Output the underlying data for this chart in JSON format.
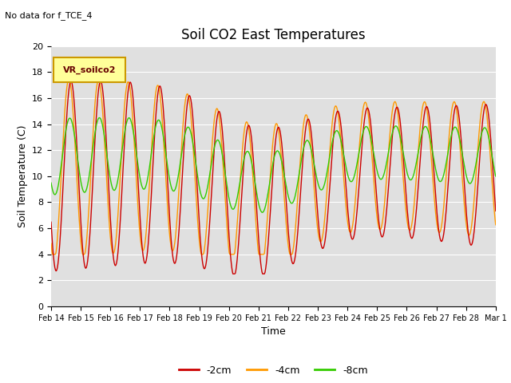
{
  "title": "Soil CO2 East Temperatures",
  "subtitle": "No data for f_TCE_4",
  "xlabel": "Time",
  "ylabel": "Soil Temperature (C)",
  "ylim": [
    0,
    20
  ],
  "legend_label": "VR_soilco2",
  "series_labels": [
    "-2cm",
    "-4cm",
    "-8cm"
  ],
  "series_colors": [
    "#cc0000",
    "#ff9900",
    "#33cc00"
  ],
  "background_color": "#e0e0e0",
  "x_tick_labels": [
    "Feb 14",
    "Feb 15",
    "Feb 16",
    "Feb 17",
    "Feb 18",
    "Feb 19",
    "Feb 20",
    "Feb 21",
    "Feb 22",
    "Feb 23",
    "Feb 24",
    "Feb 25",
    "Feb 26",
    "Feb 27",
    "Feb 28",
    "Mar 1"
  ],
  "n_days": 15,
  "samples_per_day": 48
}
